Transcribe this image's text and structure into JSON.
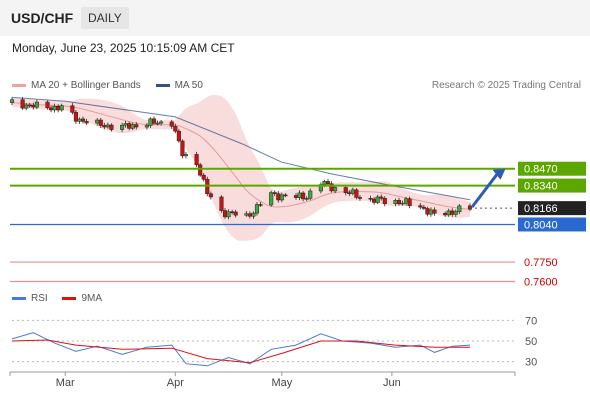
{
  "header": {
    "symbol": "USD/CHF",
    "timeframe": "DAILY"
  },
  "timestamp": "Monday, June 23, 2025 10:15:09 AM CET",
  "legend": {
    "bb_label": "MA 20 + Bollinger Bands",
    "ma50_label": "MA 50",
    "rsi_label": "RSI",
    "rsi_ma_label": "9MA"
  },
  "credit": "Research © 2025 Trading Central",
  "colors": {
    "resistance": "#5ba700",
    "support": "#2a6ad0",
    "target": "#e89090",
    "ma50": "#34508c",
    "bb_fill": "#f8d6d6",
    "rsi": "#4a78d8",
    "rsi_ma": "#dd1111",
    "bull": "#3da83d",
    "bear": "#cc1111"
  },
  "chart_data": [
    {
      "type": "candlestick",
      "title": "",
      "x_ticks": [
        "Mar",
        "Apr",
        "May",
        "Jun"
      ],
      "x_tick_dates": [
        "2025-03-01",
        "2025-04-01",
        "2025-05-01",
        "2025-06-01"
      ],
      "x_range": [
        "2025-02-14",
        "2025-06-23"
      ],
      "ylim": [
        0.755,
        0.9
      ],
      "current_price": 0.8166,
      "price_levels": [
        {
          "label": "0.8470",
          "value": 0.847,
          "kind": "resistance"
        },
        {
          "label": "0.8340",
          "value": 0.834,
          "kind": "resistance"
        },
        {
          "label": "0.8166",
          "value": 0.8166,
          "kind": "current"
        },
        {
          "label": "0.8040",
          "value": 0.804,
          "kind": "support"
        },
        {
          "label": "0.7750",
          "value": 0.775,
          "kind": "target"
        },
        {
          "label": "0.7600",
          "value": 0.76,
          "kind": "target"
        }
      ],
      "forecast_arrow": {
        "from": [
          "2025-06-23",
          0.8166
        ],
        "to": [
          "2025-07-03",
          0.847
        ]
      },
      "close_series": [
        [
          "2025-02-14",
          0.898
        ],
        [
          "2025-02-21",
          0.895
        ],
        [
          "2025-02-28",
          0.894
        ],
        [
          "2025-03-04",
          0.886
        ],
        [
          "2025-03-10",
          0.881
        ],
        [
          "2025-03-17",
          0.879
        ],
        [
          "2025-03-24",
          0.882
        ],
        [
          "2025-03-31",
          0.883
        ],
        [
          "2025-04-03",
          0.858
        ],
        [
          "2025-04-07",
          0.852
        ],
        [
          "2025-04-10",
          0.828
        ],
        [
          "2025-04-14",
          0.814
        ],
        [
          "2025-04-21",
          0.81
        ],
        [
          "2025-04-28",
          0.827
        ],
        [
          "2025-05-05",
          0.825
        ],
        [
          "2025-05-08",
          0.826
        ],
        [
          "2025-05-12",
          0.836
        ],
        [
          "2025-05-19",
          0.829
        ],
        [
          "2025-05-26",
          0.823
        ],
        [
          "2025-06-02",
          0.822
        ],
        [
          "2025-06-09",
          0.818
        ],
        [
          "2025-06-13",
          0.811
        ],
        [
          "2025-06-16",
          0.813
        ],
        [
          "2025-06-23",
          0.8166
        ]
      ],
      "ma50_series": [
        [
          "2025-02-14",
          0.902
        ],
        [
          "2025-03-01",
          0.899
        ],
        [
          "2025-04-01",
          0.887
        ],
        [
          "2025-04-20",
          0.866
        ],
        [
          "2025-05-01",
          0.852
        ],
        [
          "2025-05-15",
          0.843
        ],
        [
          "2025-06-01",
          0.834
        ],
        [
          "2025-06-23",
          0.823
        ]
      ]
    },
    {
      "type": "line",
      "title": "",
      "yticks": [
        70,
        50,
        30
      ],
      "ylim": [
        20,
        80
      ],
      "series": [
        {
          "name": "RSI",
          "points": [
            [
              "2025-02-14",
              52
            ],
            [
              "2025-02-20",
              58
            ],
            [
              "2025-02-26",
              48
            ],
            [
              "2025-03-04",
              40
            ],
            [
              "2025-03-10",
              45
            ],
            [
              "2025-03-17",
              37
            ],
            [
              "2025-03-24",
              44
            ],
            [
              "2025-03-31",
              46
            ],
            [
              "2025-04-04",
              28
            ],
            [
              "2025-04-10",
              26
            ],
            [
              "2025-04-16",
              34
            ],
            [
              "2025-04-22",
              28
            ],
            [
              "2025-04-28",
              42
            ],
            [
              "2025-05-05",
              46
            ],
            [
              "2025-05-12",
              57
            ],
            [
              "2025-05-18",
              50
            ],
            [
              "2025-05-26",
              48
            ],
            [
              "2025-06-02",
              44
            ],
            [
              "2025-06-09",
              46
            ],
            [
              "2025-06-13",
              39
            ],
            [
              "2025-06-18",
              45
            ],
            [
              "2025-06-23",
              46
            ]
          ]
        },
        {
          "name": "9MA",
          "points": [
            [
              "2025-02-14",
              50
            ],
            [
              "2025-02-24",
              51
            ],
            [
              "2025-03-04",
              46
            ],
            [
              "2025-03-17",
              42
            ],
            [
              "2025-03-31",
              43
            ],
            [
              "2025-04-10",
              33
            ],
            [
              "2025-04-22",
              29
            ],
            [
              "2025-05-01",
              38
            ],
            [
              "2025-05-12",
              50
            ],
            [
              "2025-05-22",
              50
            ],
            [
              "2025-06-02",
              46
            ],
            [
              "2025-06-13",
              44
            ],
            [
              "2025-06-23",
              44
            ]
          ]
        }
      ]
    }
  ]
}
